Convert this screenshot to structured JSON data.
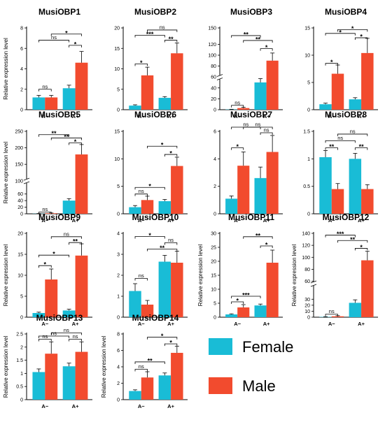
{
  "colors": {
    "female": "#19bcd6",
    "male": "#f24b2e"
  },
  "legend": [
    {
      "name": "Female",
      "color": "#19bcd6"
    },
    {
      "name": "Male",
      "color": "#f24b2e"
    }
  ],
  "chart_data": [
    {
      "type": "bar",
      "title": "MusiOBP1",
      "ylabel": "Relative expression level",
      "categories": [
        "A−",
        "A+"
      ],
      "series": [
        {
          "name": "Female",
          "values": [
            1.2,
            2.1
          ],
          "errors": [
            0.2,
            0.3
          ]
        },
        {
          "name": "Male",
          "values": [
            1.2,
            4.6
          ],
          "errors": [
            0.2,
            1.1
          ]
        }
      ],
      "ylim": [
        0,
        8
      ],
      "yticks": [
        0,
        2,
        4,
        6,
        8
      ],
      "comparisons": [
        {
          "from": 0,
          "to": 1,
          "label": "ns",
          "y": 2.0
        },
        {
          "from": 2,
          "to": 3,
          "label": "*",
          "y": 6.3
        },
        {
          "from": 0,
          "to": 2,
          "label": "ns",
          "y": 6.8
        },
        {
          "from": 1,
          "to": 3,
          "label": "*",
          "y": 7.4
        }
      ]
    },
    {
      "type": "bar",
      "title": "MusiOBP2",
      "ylabel": "",
      "categories": [
        "A−",
        "A+"
      ],
      "series": [
        {
          "name": "Female",
          "values": [
            1.0,
            2.9
          ],
          "errors": [
            0.2,
            0.3
          ]
        },
        {
          "name": "Male",
          "values": [
            8.4,
            13.8
          ],
          "errors": [
            2.0,
            2.5
          ]
        }
      ],
      "ylim": [
        0,
        20
      ],
      "yticks": [
        0,
        5,
        10,
        15,
        20
      ],
      "comparisons": [
        {
          "from": 0,
          "to": 1,
          "label": "*",
          "y": 11.2
        },
        {
          "from": 2,
          "to": 3,
          "label": "**",
          "y": 17.0
        },
        {
          "from": 0,
          "to": 2,
          "label": "***",
          "y": 18.2
        },
        {
          "from": 1,
          "to": 3,
          "label": "ns",
          "y": 19.5
        }
      ]
    },
    {
      "type": "bar",
      "title": "MusiOBP3",
      "ylabel": "",
      "categories": [
        "A−",
        "A+"
      ],
      "series": [
        {
          "name": "Female",
          "values": [
            0.5,
            50
          ],
          "errors": [
            0.3,
            7
          ]
        },
        {
          "name": "Male",
          "values": [
            3,
            90
          ],
          "errors": [
            1.5,
            14
          ]
        }
      ],
      "ylim": [
        0,
        150
      ],
      "yticks": [
        0,
        20,
        40,
        60,
        80,
        100,
        120,
        150
      ],
      "axis_break": true,
      "comparisons": [
        {
          "from": 0,
          "to": 1,
          "label": "ns",
          "y": 8
        },
        {
          "from": 2,
          "to": 3,
          "label": "*",
          "y": 112
        },
        {
          "from": 1,
          "to": 3,
          "label": "**",
          "y": 127
        },
        {
          "from": 0,
          "to": 2,
          "label": "**",
          "y": 136
        }
      ]
    },
    {
      "type": "bar",
      "title": "MusiOBP4",
      "ylabel": "",
      "categories": [
        "A−",
        "A+"
      ],
      "series": [
        {
          "name": "Female",
          "values": [
            1.0,
            1.9
          ],
          "errors": [
            0.2,
            0.3
          ]
        },
        {
          "name": "Male",
          "values": [
            6.6,
            10.4
          ],
          "errors": [
            1.6,
            2.7
          ]
        }
      ],
      "ylim": [
        0,
        15
      ],
      "yticks": [
        0,
        5,
        10,
        15
      ],
      "comparisons": [
        {
          "from": 0,
          "to": 1,
          "label": "*",
          "y": 8.5
        },
        {
          "from": 2,
          "to": 3,
          "label": "*",
          "y": 13.2
        },
        {
          "from": 0,
          "to": 2,
          "label": "*",
          "y": 14.0
        },
        {
          "from": 1,
          "to": 3,
          "label": "*",
          "y": 14.7
        }
      ]
    },
    {
      "type": "bar",
      "title": "MusiOBP5",
      "ylabel": "Relative expression level",
      "categories": [
        "A−",
        "A+"
      ],
      "series": [
        {
          "name": "Female",
          "values": [
            0.5,
            40
          ],
          "errors": [
            0.3,
            6
          ]
        },
        {
          "name": "Male",
          "values": [
            1.5,
            180
          ],
          "errors": [
            1,
            30
          ]
        }
      ],
      "ylim": [
        0,
        250
      ],
      "yticks": [
        0,
        20,
        40,
        60,
        100,
        150,
        200,
        250
      ],
      "axis_break": true,
      "comparisons": [
        {
          "from": 0,
          "to": 1,
          "label": "ns",
          "y": 5
        },
        {
          "from": 2,
          "to": 3,
          "label": "*",
          "y": 215
        },
        {
          "from": 1,
          "to": 3,
          "label": "**",
          "y": 230
        },
        {
          "from": 0,
          "to": 2,
          "label": "**",
          "y": 240
        }
      ]
    },
    {
      "type": "bar",
      "title": "MusiOBP6",
      "ylabel": "",
      "categories": [
        "A−",
        "A+"
      ],
      "series": [
        {
          "name": "Female",
          "values": [
            1.2,
            2.3
          ],
          "errors": [
            0.3,
            0.3
          ]
        },
        {
          "name": "Male",
          "values": [
            2.5,
            8.7
          ],
          "errors": [
            0.7,
            1.6
          ]
        }
      ],
      "ylim": [
        0,
        15
      ],
      "yticks": [
        0,
        5,
        10,
        15
      ],
      "comparisons": [
        {
          "from": 0,
          "to": 1,
          "label": "ns",
          "y": 3.6
        },
        {
          "from": 0,
          "to": 2,
          "label": "*",
          "y": 4.8
        },
        {
          "from": 2,
          "to": 3,
          "label": "*",
          "y": 10.8
        },
        {
          "from": 1,
          "to": 3,
          "label": "*",
          "y": 12.3
        }
      ]
    },
    {
      "type": "bar",
      "title": "MusiOBP7",
      "ylabel": "",
      "categories": [
        "A−",
        "A+"
      ],
      "series": [
        {
          "name": "Female",
          "values": [
            1.1,
            2.6
          ],
          "errors": [
            0.2,
            0.8
          ]
        },
        {
          "name": "Male",
          "values": [
            3.5,
            4.5
          ],
          "errors": [
            1.0,
            1.2
          ]
        }
      ],
      "ylim": [
        0,
        6
      ],
      "yticks": [
        0,
        2,
        4,
        6
      ],
      "comparisons": [
        {
          "from": 0,
          "to": 1,
          "label": "*",
          "y": 4.8
        },
        {
          "from": 2,
          "to": 3,
          "label": "ns",
          "y": 5.9
        },
        {
          "from": 0,
          "to": 2,
          "label": "ns",
          "y": 6.35
        },
        {
          "from": 1,
          "to": 3,
          "label": "ns",
          "y": 6.8
        }
      ]
    },
    {
      "type": "bar",
      "title": "MusiOBP8",
      "ylabel": "",
      "categories": [
        "A−",
        "A+"
      ],
      "series": [
        {
          "name": "Female",
          "values": [
            1.03,
            1.0
          ],
          "errors": [
            0.12,
            0.1
          ]
        },
        {
          "name": "Male",
          "values": [
            0.45,
            0.45
          ],
          "errors": [
            0.1,
            0.08
          ]
        }
      ],
      "ylim": [
        0,
        1.5
      ],
      "yticks": [
        0,
        0.5,
        1.0,
        1.5
      ],
      "comparisons": [
        {
          "from": 0,
          "to": 1,
          "label": "**",
          "y": 1.2
        },
        {
          "from": 2,
          "to": 3,
          "label": "**",
          "y": 1.2
        },
        {
          "from": 0,
          "to": 2,
          "label": "ns",
          "y": 1.33
        },
        {
          "from": 1,
          "to": 3,
          "label": "ns",
          "y": 1.45
        }
      ]
    },
    {
      "type": "bar",
      "title": "MusiOBP9",
      "ylabel": "Relative expression level",
      "categories": [
        "A−",
        "A+"
      ],
      "series": [
        {
          "name": "Female",
          "values": [
            1.0,
            1.6
          ],
          "errors": [
            0.2,
            0.3
          ]
        },
        {
          "name": "Male",
          "values": [
            9.0,
            14.7
          ],
          "errors": [
            2.5,
            2.8
          ]
        }
      ],
      "ylim": [
        0,
        20
      ],
      "yticks": [
        0,
        5,
        10,
        15,
        20
      ],
      "comparisons": [
        {
          "from": 0,
          "to": 1,
          "label": "*",
          "y": 12.3
        },
        {
          "from": 0,
          "to": 2,
          "label": "*",
          "y": 14.8
        },
        {
          "from": 2,
          "to": 3,
          "label": "**",
          "y": 17.8
        },
        {
          "from": 1,
          "to": 3,
          "label": "ns",
          "y": 19.2
        }
      ]
    },
    {
      "type": "bar",
      "title": "MusiOBP10",
      "ylabel": "",
      "categories": [
        "A−",
        "A+"
      ],
      "series": [
        {
          "name": "Female",
          "values": [
            1.25,
            2.65
          ],
          "errors": [
            0.35,
            0.3
          ]
        },
        {
          "name": "Male",
          "values": [
            0.6,
            2.6
          ],
          "errors": [
            0.2,
            0.55
          ]
        }
      ],
      "ylim": [
        0,
        4
      ],
      "yticks": [
        0,
        1,
        2,
        3,
        4
      ],
      "comparisons": [
        {
          "from": 0,
          "to": 1,
          "label": "ns",
          "y": 1.85
        },
        {
          "from": 1,
          "to": 3,
          "label": "**",
          "y": 3.25
        },
        {
          "from": 2,
          "to": 3,
          "label": "ns",
          "y": 3.55
        },
        {
          "from": 0,
          "to": 2,
          "label": "*",
          "y": 3.85
        }
      ]
    },
    {
      "type": "bar",
      "title": "MusiOBP11",
      "ylabel": "Relative expression level",
      "categories": [
        "A−",
        "A+"
      ],
      "series": [
        {
          "name": "Female",
          "values": [
            1.0,
            4.2
          ],
          "errors": [
            0.2,
            0.5
          ]
        },
        {
          "name": "Male",
          "values": [
            3.5,
            19.5
          ],
          "errors": [
            1.0,
            4.5
          ]
        }
      ],
      "ylim": [
        0,
        30
      ],
      "yticks": [
        0,
        5,
        10,
        15,
        20,
        25,
        30
      ],
      "comparisons": [
        {
          "from": 0,
          "to": 1,
          "label": "*",
          "y": 5.5
        },
        {
          "from": 0,
          "to": 2,
          "label": "***",
          "y": 7.5
        },
        {
          "from": 2,
          "to": 3,
          "label": "*",
          "y": 25.5
        },
        {
          "from": 1,
          "to": 3,
          "label": "**",
          "y": 28.8
        }
      ]
    },
    {
      "type": "bar",
      "title": "MusiOBP12",
      "ylabel": "Relative expression level",
      "categories": [
        "A−",
        "A+"
      ],
      "series": [
        {
          "name": "Female",
          "values": [
            0.5,
            24
          ],
          "errors": [
            0.3,
            5
          ]
        },
        {
          "name": "Male",
          "values": [
            1.5,
            95
          ],
          "errors": [
            1,
            15
          ]
        }
      ],
      "ylim": [
        0,
        140
      ],
      "yticks": [
        0,
        10,
        20,
        30,
        60,
        80,
        100,
        120,
        140
      ],
      "axis_break": true,
      "comparisons": [
        {
          "from": 0,
          "to": 1,
          "label": "ns",
          "y": 5
        },
        {
          "from": 2,
          "to": 3,
          "label": "*",
          "y": 115
        },
        {
          "from": 1,
          "to": 3,
          "label": "**",
          "y": 128
        },
        {
          "from": 0,
          "to": 2,
          "label": "***",
          "y": 137
        }
      ]
    },
    {
      "type": "bar",
      "title": "MusiOBP13",
      "ylabel": "Relative expression level",
      "categories": [
        "A−",
        "A+"
      ],
      "series": [
        {
          "name": "Female",
          "values": [
            1.05,
            1.27
          ],
          "errors": [
            0.12,
            0.12
          ]
        },
        {
          "name": "Male",
          "values": [
            1.75,
            1.82
          ],
          "errors": [
            0.45,
            0.38
          ]
        }
      ],
      "ylim": [
        0,
        2.5
      ],
      "yticks": [
        0,
        0.5,
        1.0,
        1.5,
        2.0,
        2.5
      ],
      "comparisons": [
        {
          "from": 0,
          "to": 1,
          "label": "ns",
          "y": 2.3
        },
        {
          "from": 2,
          "to": 3,
          "label": "ns",
          "y": 2.3
        },
        {
          "from": 0,
          "to": 2,
          "label": "ns",
          "y": 2.42
        },
        {
          "from": 1,
          "to": 3,
          "label": "ns",
          "y": 2.54
        }
      ]
    },
    {
      "type": "bar",
      "title": "MusiOBP14",
      "ylabel": "Relative expression level",
      "categories": [
        "A−",
        "A+"
      ],
      "series": [
        {
          "name": "Female",
          "values": [
            1.05,
            2.95
          ],
          "errors": [
            0.15,
            0.3
          ]
        },
        {
          "name": "Male",
          "values": [
            2.7,
            5.7
          ],
          "errors": [
            0.7,
            0.8
          ]
        }
      ],
      "ylim": [
        0,
        8
      ],
      "yticks": [
        0,
        2,
        4,
        6,
        8
      ],
      "comparisons": [
        {
          "from": 0,
          "to": 1,
          "label": "ns",
          "y": 3.7
        },
        {
          "from": 0,
          "to": 2,
          "label": "**",
          "y": 4.6
        },
        {
          "from": 2,
          "to": 3,
          "label": "*",
          "y": 6.8
        },
        {
          "from": 1,
          "to": 3,
          "label": "*",
          "y": 7.6
        }
      ]
    }
  ]
}
